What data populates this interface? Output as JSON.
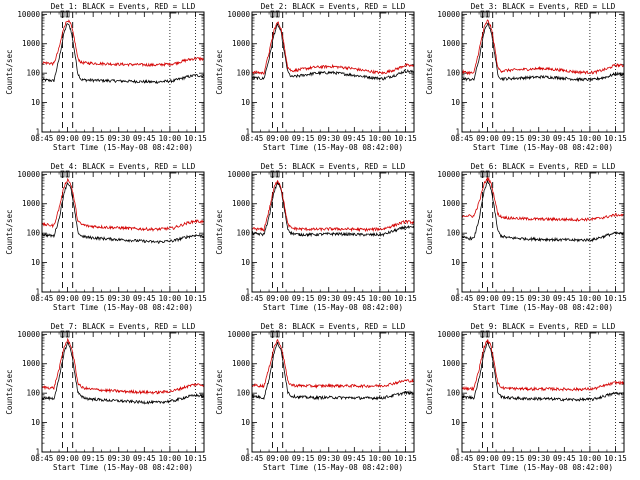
{
  "colors": {
    "events": "#000000",
    "lld": "#d40000",
    "axis": "#000000",
    "background": "#ffffff"
  },
  "ylabel": "Counts/sec",
  "xlabel": "Start Time (15-May-08 08:42:00)",
  "x_tick_labels": [
    "08:45",
    "09:00",
    "09:15",
    "09:30",
    "09:45",
    "10:00",
    "10:15"
  ],
  "y_tick_labels": [
    "1",
    "10",
    "100",
    "1000",
    "10000"
  ],
  "chart_data": [
    {
      "type": "line",
      "title": "Det 1: BLACK = Events, RED = LLD",
      "xlim_min": [
        3,
        98
      ],
      "ylim": [
        1,
        12000
      ],
      "series": [
        {
          "name": "Events",
          "x": [
            3,
            10,
            13,
            16,
            18,
            20,
            22,
            24,
            26,
            30,
            40,
            50,
            60,
            70,
            80,
            88,
            93,
            98
          ],
          "y": [
            60,
            55,
            300,
            2500,
            5000,
            3000,
            600,
            100,
            60,
            58,
            56,
            54,
            52,
            50,
            55,
            75,
            85,
            80
          ]
        },
        {
          "name": "LLD",
          "x": [
            3,
            10,
            13,
            16,
            18,
            20,
            22,
            24,
            26,
            30,
            40,
            50,
            60,
            70,
            80,
            88,
            93,
            98
          ],
          "y": [
            230,
            210,
            700,
            4000,
            6500,
            4500,
            1500,
            320,
            230,
            220,
            210,
            200,
            195,
            190,
            210,
            280,
            320,
            300
          ]
        }
      ]
    },
    {
      "type": "line",
      "title": "Det 2: BLACK = Events, RED = LLD",
      "xlim_min": [
        3,
        98
      ],
      "ylim": [
        1,
        12000
      ],
      "series": [
        {
          "name": "Events",
          "x": [
            3,
            10,
            13,
            16,
            18,
            20,
            22,
            24,
            26,
            30,
            40,
            50,
            60,
            70,
            80,
            88,
            93,
            98
          ],
          "y": [
            70,
            65,
            300,
            2200,
            4500,
            2600,
            500,
            110,
            75,
            80,
            100,
            105,
            90,
            75,
            65,
            90,
            120,
            110
          ]
        },
        {
          "name": "LLD",
          "x": [
            3,
            10,
            13,
            16,
            18,
            20,
            22,
            24,
            26,
            30,
            40,
            50,
            60,
            70,
            80,
            88,
            93,
            98
          ],
          "y": [
            110,
            100,
            500,
            3000,
            5500,
            3400,
            800,
            160,
            120,
            130,
            160,
            170,
            150,
            120,
            100,
            140,
            190,
            170
          ]
        }
      ]
    },
    {
      "type": "line",
      "title": "Det 3: BLACK = Events, RED = LLD",
      "xlim_min": [
        3,
        98
      ],
      "ylim": [
        1,
        12000
      ],
      "series": [
        {
          "name": "Events",
          "x": [
            3,
            10,
            13,
            16,
            18,
            20,
            22,
            24,
            26,
            30,
            40,
            50,
            60,
            70,
            80,
            88,
            93,
            98
          ],
          "y": [
            65,
            60,
            300,
            2500,
            5200,
            2800,
            550,
            90,
            65,
            65,
            70,
            75,
            70,
            62,
            60,
            75,
            95,
            90
          ]
        },
        {
          "name": "LLD",
          "x": [
            3,
            10,
            13,
            16,
            18,
            20,
            22,
            24,
            26,
            30,
            40,
            50,
            60,
            70,
            80,
            88,
            93,
            98
          ],
          "y": [
            110,
            100,
            600,
            3600,
            6200,
            3800,
            900,
            150,
            120,
            125,
            135,
            145,
            130,
            110,
            105,
            140,
            190,
            180
          ]
        }
      ]
    },
    {
      "type": "line",
      "title": "Det 4: BLACK = Events, RED = LLD",
      "xlim_min": [
        3,
        98
      ],
      "ylim": [
        1,
        12000
      ],
      "series": [
        {
          "name": "Events",
          "x": [
            3,
            10,
            13,
            16,
            18,
            20,
            22,
            24,
            26,
            30,
            40,
            50,
            60,
            70,
            80,
            88,
            93,
            98
          ],
          "y": [
            90,
            80,
            300,
            2500,
            5300,
            3200,
            650,
            110,
            80,
            72,
            65,
            60,
            55,
            50,
            55,
            75,
            85,
            80
          ]
        },
        {
          "name": "LLD",
          "x": [
            3,
            10,
            13,
            16,
            18,
            20,
            22,
            24,
            26,
            30,
            40,
            50,
            60,
            70,
            80,
            88,
            93,
            98
          ],
          "y": [
            200,
            180,
            700,
            4000,
            6800,
            4500,
            1300,
            260,
            200,
            175,
            160,
            150,
            140,
            135,
            150,
            220,
            260,
            240
          ]
        }
      ]
    },
    {
      "type": "line",
      "title": "Det 5: BLACK = Events, RED = LLD",
      "xlim_min": [
        3,
        98
      ],
      "ylim": [
        1,
        12000
      ],
      "series": [
        {
          "name": "Events",
          "x": [
            3,
            10,
            13,
            16,
            18,
            20,
            22,
            24,
            26,
            30,
            40,
            50,
            60,
            70,
            80,
            88,
            93,
            98
          ],
          "y": [
            100,
            90,
            350,
            2600,
            5400,
            3100,
            650,
            140,
            100,
            90,
            90,
            95,
            92,
            88,
            90,
            130,
            160,
            150
          ]
        },
        {
          "name": "LLD",
          "x": [
            3,
            10,
            13,
            16,
            18,
            20,
            22,
            24,
            26,
            30,
            40,
            50,
            60,
            70,
            80,
            88,
            93,
            98
          ],
          "y": [
            145,
            130,
            600,
            3600,
            6400,
            3800,
            900,
            200,
            150,
            140,
            135,
            140,
            138,
            132,
            140,
            200,
            250,
            230
          ]
        }
      ]
    },
    {
      "type": "line",
      "title": "Det 6: BLACK = Events, RED = LLD",
      "xlim_min": [
        3,
        98
      ],
      "ylim": [
        1,
        12000
      ],
      "series": [
        {
          "name": "Events",
          "x": [
            3,
            10,
            13,
            16,
            18,
            20,
            22,
            24,
            26,
            30,
            40,
            50,
            60,
            70,
            80,
            88,
            93,
            98
          ],
          "y": [
            70,
            65,
            300,
            2700,
            5800,
            3400,
            700,
            120,
            80,
            70,
            65,
            62,
            60,
            58,
            60,
            85,
            100,
            95
          ]
        },
        {
          "name": "LLD",
          "x": [
            3,
            10,
            13,
            16,
            18,
            20,
            22,
            24,
            26,
            30,
            40,
            50,
            60,
            70,
            80,
            88,
            93,
            98
          ],
          "y": [
            400,
            380,
            1100,
            4800,
            7500,
            5000,
            1700,
            450,
            360,
            330,
            310,
            300,
            295,
            290,
            300,
            360,
            420,
            400
          ]
        }
      ]
    },
    {
      "type": "line",
      "title": "Det 7: BLACK = Events, RED = LLD",
      "xlim_min": [
        3,
        98
      ],
      "ylim": [
        1,
        12000
      ],
      "series": [
        {
          "name": "Events",
          "x": [
            3,
            10,
            13,
            16,
            18,
            20,
            22,
            24,
            26,
            30,
            40,
            50,
            60,
            70,
            80,
            88,
            93,
            98
          ],
          "y": [
            70,
            65,
            300,
            2500,
            5200,
            3000,
            600,
            110,
            75,
            65,
            58,
            54,
            50,
            48,
            55,
            75,
            85,
            80
          ]
        },
        {
          "name": "LLD",
          "x": [
            3,
            10,
            13,
            16,
            18,
            20,
            22,
            24,
            26,
            30,
            40,
            50,
            60,
            70,
            80,
            88,
            93,
            98
          ],
          "y": [
            160,
            150,
            650,
            3800,
            6400,
            4200,
            1200,
            230,
            160,
            140,
            125,
            115,
            110,
            105,
            120,
            170,
            200,
            190
          ]
        }
      ]
    },
    {
      "type": "line",
      "title": "Det 8: BLACK = Events, RED = LLD",
      "xlim_min": [
        3,
        98
      ],
      "ylim": [
        1,
        12000
      ],
      "series": [
        {
          "name": "Events",
          "x": [
            3,
            10,
            13,
            16,
            18,
            20,
            22,
            24,
            26,
            30,
            40,
            50,
            60,
            70,
            80,
            88,
            93,
            98
          ],
          "y": [
            80,
            70,
            300,
            2500,
            5100,
            2900,
            600,
            110,
            80,
            75,
            70,
            72,
            70,
            68,
            70,
            90,
            105,
            100
          ]
        },
        {
          "name": "LLD",
          "x": [
            3,
            10,
            13,
            16,
            18,
            20,
            22,
            24,
            26,
            30,
            40,
            50,
            60,
            70,
            80,
            88,
            93,
            98
          ],
          "y": [
            190,
            175,
            700,
            3800,
            6400,
            4100,
            1200,
            250,
            190,
            180,
            175,
            180,
            178,
            175,
            180,
            230,
            270,
            260
          ]
        }
      ]
    },
    {
      "type": "line",
      "title": "Det 9: BLACK = Events, RED = LLD",
      "xlim_min": [
        3,
        98
      ],
      "ylim": [
        1,
        12000
      ],
      "series": [
        {
          "name": "Events",
          "x": [
            3,
            10,
            13,
            16,
            18,
            20,
            22,
            24,
            26,
            30,
            40,
            50,
            60,
            70,
            80,
            88,
            93,
            98
          ],
          "y": [
            75,
            70,
            300,
            2600,
            5400,
            3000,
            600,
            110,
            75,
            70,
            65,
            65,
            62,
            60,
            62,
            85,
            100,
            95
          ]
        },
        {
          "name": "LLD",
          "x": [
            3,
            10,
            13,
            16,
            18,
            20,
            22,
            24,
            26,
            30,
            40,
            50,
            60,
            70,
            80,
            88,
            93,
            98
          ],
          "y": [
            150,
            140,
            650,
            3800,
            6400,
            4000,
            1100,
            220,
            155,
            145,
            140,
            140,
            138,
            135,
            140,
            190,
            230,
            220
          ]
        }
      ]
    }
  ]
}
